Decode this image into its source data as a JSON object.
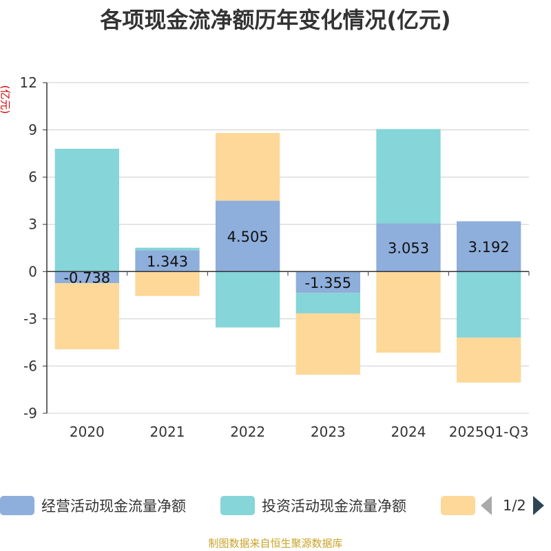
{
  "title": "各项现金流净额历年变化情况(亿元)",
  "unit_label": "(亿元)",
  "source": "制图数据来自恒生聚源数据库",
  "legend": {
    "items": [
      {
        "label": "经营活动现金流量净额",
        "color": "#8eaedb"
      },
      {
        "label": "投资活动现金流量净额",
        "color": "#86d5d8"
      },
      {
        "label": "",
        "color": "#fdd899"
      }
    ],
    "page": "1/2"
  },
  "chart_data": {
    "type": "bar",
    "stacked": true,
    "title": "各项现金流净额历年变化情况(亿元)",
    "ylabel": "(亿元)",
    "ylim": [
      -9,
      12
    ],
    "yticks": [
      -9,
      -6,
      -3,
      0,
      3,
      6,
      9,
      12
    ],
    "grid": true,
    "categories": [
      "2020",
      "2021",
      "2022",
      "2023",
      "2024",
      "2025Q1-Q3"
    ],
    "series": [
      {
        "name": "经营活动现金流量净额",
        "color": "#8eaedb",
        "values": [
          -0.738,
          1.343,
          4.505,
          -1.355,
          3.053,
          3.192
        ],
        "labels": [
          "-0.738",
          "1.343",
          "4.505",
          "-1.355",
          "3.053",
          "3.192"
        ]
      },
      {
        "name": "投资活动现金流量净额",
        "color": "#86d5d8",
        "values": [
          7.8,
          0.17,
          -3.55,
          -1.3,
          6.0,
          -4.2
        ]
      },
      {
        "name": "",
        "color": "#fdd899",
        "values": [
          -4.2,
          -1.55,
          4.3,
          -3.9,
          -5.15,
          -2.85
        ]
      }
    ]
  }
}
